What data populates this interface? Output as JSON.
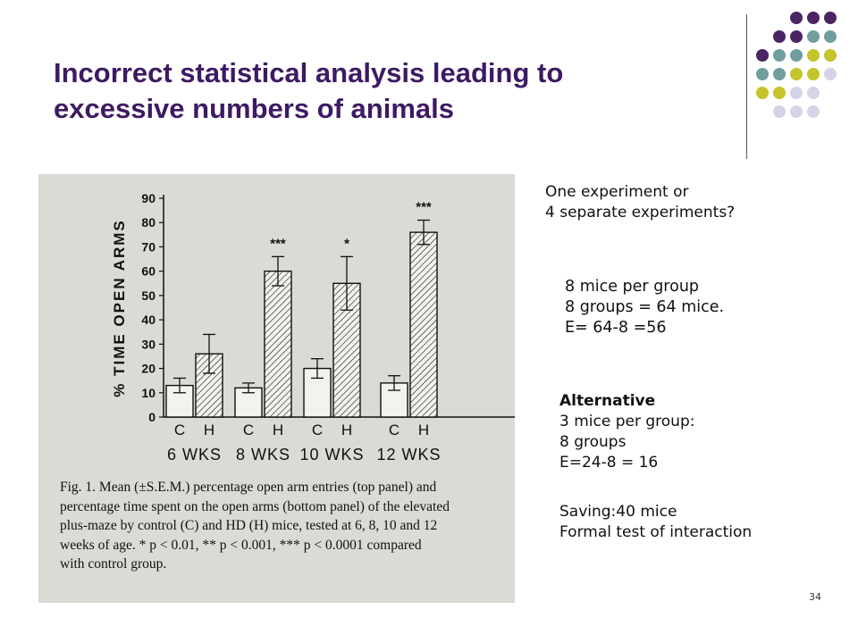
{
  "slide": {
    "title_line1": "Incorrect statistical analysis leading to",
    "title_line2": "excessive numbers of animals",
    "page_number": "34",
    "palette": {
      "purple": "#4b2464",
      "teal": "#6f9e9d",
      "olive": "#c5c42a",
      "lavender": "#d4d4e6"
    }
  },
  "notes": {
    "q_line1": "One experiment or",
    "q_line2": "4 separate experiments?",
    "c_line1": "8 mice per group",
    "c_line2": "8   groups = 64 mice.",
    "c_line3": "E= 64-8 =56",
    "alt_heading": "Alternative",
    "alt_line1": "3 mice per group:",
    "alt_line2": "8 groups",
    "alt_line3": "E=24-8 = 16",
    "saving": "Saving:40 mice",
    "formal": "Formal test of interaction"
  },
  "figure": {
    "caption_l1": "Fig. 1. Mean (±S.E.M.) percentage open arm entries (top panel) and",
    "caption_l2": "percentage time spent on the open arms (bottom panel) of the elevated",
    "caption_l3": "plus-maze by control (C) and HD (H) mice, tested at 6, 8, 10 and 12",
    "caption_l4": "weeks of age. * p < 0.01,  ** p < 0.001,  *** p < 0.0001 compared",
    "caption_l5": "with control group."
  },
  "chart_data": {
    "type": "bar",
    "ylabel": "% TIME OPEN ARMS",
    "ylim": [
      0,
      90
    ],
    "yticks": [
      0,
      10,
      20,
      30,
      40,
      50,
      60,
      70,
      80,
      90
    ],
    "groups": [
      "6 WKS",
      "8 WKS",
      "10 WKS",
      "12 WKS"
    ],
    "bar_labels": [
      "C",
      "H"
    ],
    "series": [
      {
        "name": "C",
        "values": [
          13,
          12,
          20,
          14
        ],
        "errors": [
          3,
          2,
          4,
          3
        ]
      },
      {
        "name": "H",
        "values": [
          26,
          60,
          55,
          76
        ],
        "errors": [
          8,
          6,
          11,
          5
        ]
      }
    ],
    "significance": [
      "",
      "***",
      "*",
      "***"
    ],
    "grid": false
  }
}
